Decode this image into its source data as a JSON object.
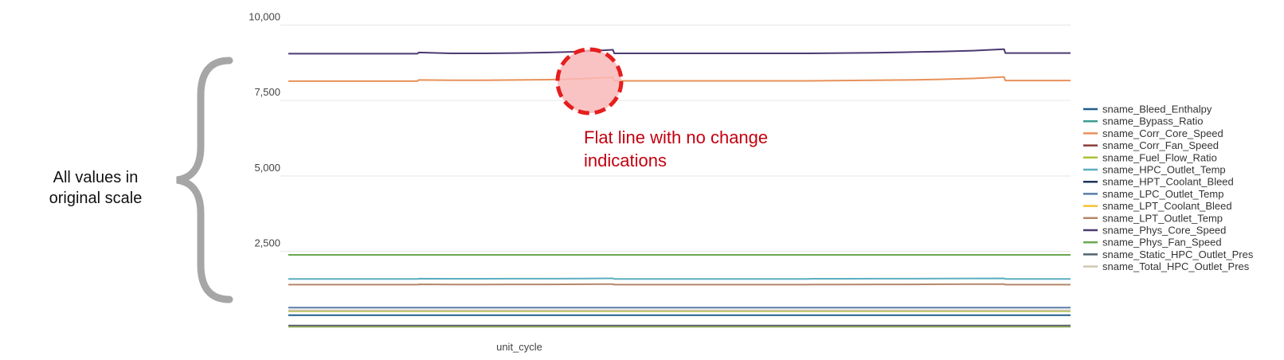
{
  "chart_data": {
    "type": "line",
    "xlabel": "unit_cycle",
    "ylim": [
      -250,
      10300
    ],
    "yticks": [
      10000,
      7500,
      5000,
      2500
    ],
    "ytick_labels": [
      "10,000",
      "7,500",
      "5,000",
      "2,500"
    ],
    "grid": true,
    "legend_position": "right",
    "x": [
      0,
      25,
      50,
      75,
      99,
      100,
      125,
      150,
      175,
      200,
      225,
      249,
      250,
      275,
      300,
      325,
      350,
      375,
      399,
      400,
      425,
      450,
      475,
      500,
      525,
      549,
      550,
      575,
      600
    ],
    "series": [
      {
        "name": "sname_Bleed_Enthalpy",
        "color": "#1f5e8c",
        "values": [
          392,
          392,
          392,
          392,
          392,
          392,
          392,
          392,
          392,
          392,
          392,
          392,
          392,
          392,
          392,
          392,
          392,
          392,
          392,
          392,
          392,
          392,
          392,
          392,
          392,
          392,
          392,
          392,
          392
        ]
      },
      {
        "name": "sname_Bypass_Ratio",
        "color": "#3a9d8f",
        "values": [
          8,
          8,
          8,
          8,
          8,
          8,
          8,
          8,
          8,
          8,
          8,
          8,
          8,
          8,
          8,
          8,
          8,
          8,
          8,
          8,
          8,
          8,
          8,
          8,
          8,
          8,
          8,
          8,
          8
        ]
      },
      {
        "name": "sname_Corr_Core_Speed",
        "color": "#e8915a",
        "values": [
          8140,
          8140,
          8140,
          8140,
          8140,
          8180,
          8170,
          8170,
          8180,
          8190,
          8220,
          8270,
          8150,
          8150,
          8150,
          8150,
          8150,
          8150,
          8150,
          8150,
          8160,
          8170,
          8180,
          8200,
          8230,
          8280,
          8160,
          8160,
          8160
        ]
      },
      {
        "name": "sname_Corr_Fan_Speed",
        "color": "#8c3b3b",
        "values": [
          2388,
          2388,
          2388,
          2388,
          2388,
          2388,
          2388,
          2388,
          2388,
          2388,
          2388,
          2388,
          2388,
          2388,
          2388,
          2388,
          2388,
          2388,
          2388,
          2388,
          2388,
          2388,
          2388,
          2388,
          2388,
          2388,
          2388,
          2388,
          2388
        ]
      },
      {
        "name": "sname_Fuel_Flow_Ratio",
        "color": "#a8c23a",
        "values": [
          521,
          521,
          521,
          521,
          521,
          521,
          521,
          521,
          521,
          521,
          521,
          521,
          521,
          521,
          521,
          521,
          521,
          521,
          521,
          521,
          521,
          521,
          521,
          521,
          521,
          521,
          521,
          521,
          521
        ]
      },
      {
        "name": "sname_HPC_Outlet_Temp",
        "color": "#5aaec0",
        "values": [
          1590,
          1590,
          1590,
          1590,
          1590,
          1600,
          1595,
          1595,
          1598,
          1600,
          1605,
          1610,
          1592,
          1592,
          1592,
          1592,
          1592,
          1592,
          1592,
          1595,
          1595,
          1598,
          1600,
          1603,
          1606,
          1610,
          1592,
          1592,
          1592
        ]
      },
      {
        "name": "sname_HPT_Coolant_Bleed",
        "color": "#1d3557",
        "values": [
          39,
          39,
          39,
          39,
          39,
          39,
          39,
          39,
          39,
          39,
          39,
          39,
          39,
          39,
          39,
          39,
          39,
          39,
          39,
          39,
          39,
          39,
          39,
          39,
          39,
          39,
          39,
          39,
          39
        ]
      },
      {
        "name": "sname_LPC_Outlet_Temp",
        "color": "#5a7ca8",
        "values": [
          642,
          642,
          642,
          642,
          642,
          642,
          642,
          642,
          642,
          642,
          642,
          642,
          642,
          642,
          642,
          642,
          642,
          642,
          642,
          642,
          642,
          642,
          642,
          642,
          642,
          642,
          642,
          642,
          642
        ]
      },
      {
        "name": "sname_LPT_Coolant_Bleed",
        "color": "#f2c230",
        "values": [
          23,
          23,
          23,
          23,
          23,
          23,
          23,
          23,
          23,
          23,
          23,
          23,
          23,
          23,
          23,
          23,
          23,
          23,
          23,
          23,
          23,
          23,
          23,
          23,
          23,
          23,
          23,
          23,
          23
        ]
      },
      {
        "name": "sname_LPT_Outlet_Temp",
        "color": "#b5866a",
        "values": [
          1400,
          1400,
          1400,
          1400,
          1400,
          1412,
          1405,
          1405,
          1408,
          1410,
          1415,
          1420,
          1400,
          1400,
          1400,
          1400,
          1400,
          1400,
          1400,
          1405,
          1405,
          1408,
          1410,
          1413,
          1416,
          1420,
          1400,
          1400,
          1400
        ]
      },
      {
        "name": "sname_Phys_Core_Speed",
        "color": "#4b3a72",
        "values": [
          9050,
          9050,
          9050,
          9050,
          9050,
          9090,
          9060,
          9060,
          9070,
          9090,
          9120,
          9180,
          9060,
          9060,
          9060,
          9060,
          9060,
          9060,
          9060,
          9060,
          9070,
          9080,
          9100,
          9120,
          9150,
          9200,
          9070,
          9070,
          9070
        ]
      },
      {
        "name": "sname_Phys_Fan_Speed",
        "color": "#6aa84f",
        "values": [
          2388,
          2388,
          2388,
          2388,
          2388,
          2388,
          2388,
          2388,
          2388,
          2388,
          2388,
          2388,
          2388,
          2388,
          2388,
          2388,
          2388,
          2388,
          2388,
          2388,
          2388,
          2388,
          2388,
          2388,
          2388,
          2388,
          2388,
          2388,
          2388
        ]
      },
      {
        "name": "sname_Static_HPC_Outlet_Pres",
        "color": "#4f6470",
        "values": [
          47,
          47,
          47,
          47,
          47,
          47,
          47,
          47,
          47,
          47,
          47,
          47,
          47,
          47,
          47,
          47,
          47,
          47,
          47,
          47,
          47,
          47,
          47,
          47,
          47,
          47,
          47,
          47,
          47
        ]
      },
      {
        "name": "sname_Total_HPC_Outlet_Pres",
        "color": "#d0c6b2",
        "values": [
          553,
          553,
          553,
          553,
          553,
          553,
          553,
          553,
          553,
          553,
          553,
          553,
          553,
          553,
          553,
          553,
          553,
          553,
          553,
          553,
          553,
          553,
          553,
          553,
          553,
          553,
          553,
          553,
          553
        ]
      }
    ]
  },
  "annotations": {
    "side_note": "All values in original scale",
    "callout": "Flat line with no change indications",
    "brace_color": "#a6a6a6",
    "highlight_color": "#e61e1e",
    "callout_color": "#c40010"
  }
}
